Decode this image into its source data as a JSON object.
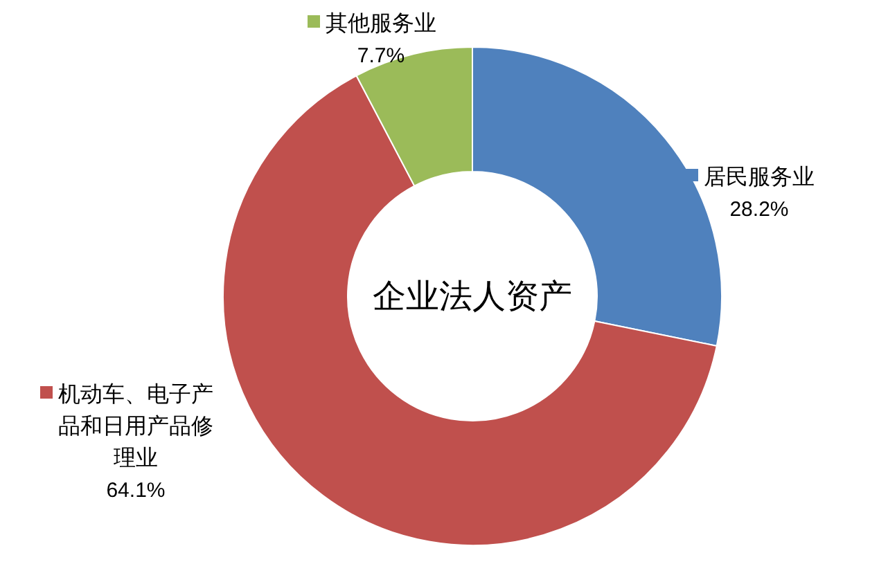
{
  "chart_data": {
    "type": "donut",
    "title": "企业法人资产",
    "categories": [
      "居民服务业",
      "机动车、电子产品和日用产品修理业",
      "其他服务业"
    ],
    "values": [
      28.2,
      64.1,
      7.7
    ],
    "colors": [
      "#4f81bd",
      "#c0504d",
      "#9bbb59"
    ],
    "value_labels": [
      "28.2%",
      "64.1%",
      "7.7%"
    ],
    "legend": "top left"
  }
}
